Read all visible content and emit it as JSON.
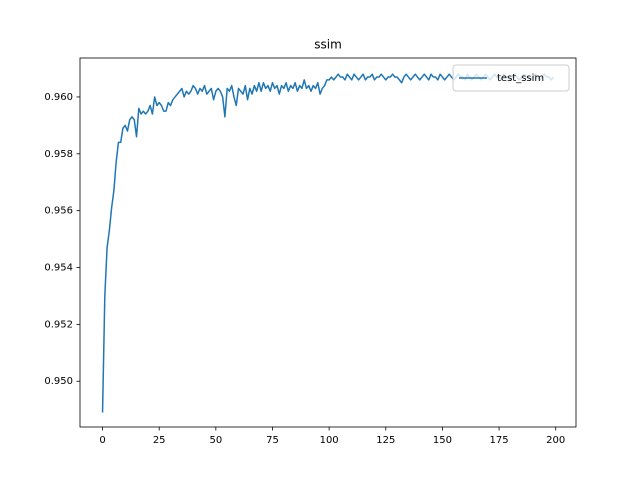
{
  "chart_data": {
    "type": "line",
    "title": "ssim",
    "x": [
      0,
      1,
      2,
      3,
      4,
      5,
      6,
      7,
      8,
      9,
      10,
      11,
      12,
      13,
      14,
      15,
      16,
      17,
      18,
      19,
      20,
      21,
      22,
      23,
      24,
      25,
      26,
      27,
      28,
      29,
      30,
      31,
      32,
      33,
      34,
      35,
      36,
      37,
      38,
      39,
      40,
      41,
      42,
      43,
      44,
      45,
      46,
      47,
      48,
      49,
      50,
      51,
      52,
      53,
      54,
      55,
      56,
      57,
      58,
      59,
      60,
      61,
      62,
      63,
      64,
      65,
      66,
      67,
      68,
      69,
      70,
      71,
      72,
      73,
      74,
      75,
      76,
      77,
      78,
      79,
      80,
      81,
      82,
      83,
      84,
      85,
      86,
      87,
      88,
      89,
      90,
      91,
      92,
      93,
      94,
      95,
      96,
      97,
      98,
      99,
      100,
      101,
      102,
      103,
      104,
      105,
      106,
      107,
      108,
      109,
      110,
      111,
      112,
      113,
      114,
      115,
      116,
      117,
      118,
      119,
      120,
      121,
      122,
      123,
      124,
      125,
      126,
      127,
      128,
      129,
      130,
      131,
      132,
      133,
      134,
      135,
      136,
      137,
      138,
      139,
      140,
      141,
      142,
      143,
      144,
      145,
      146,
      147,
      148,
      149,
      150,
      151,
      152,
      153,
      154,
      155,
      156,
      157,
      158,
      159,
      160,
      161,
      162,
      163,
      164,
      165,
      166,
      167,
      168,
      169,
      170,
      171,
      172,
      173,
      174,
      175,
      176,
      177,
      178,
      179,
      180,
      181,
      182,
      183,
      184,
      185,
      186,
      187,
      188,
      189,
      190,
      191,
      192,
      193,
      194,
      195,
      196,
      197,
      198,
      199
    ],
    "series": [
      {
        "name": "test_ssim",
        "color": "#1f77b4",
        "values": [
          0.9489,
          0.953,
          0.9547,
          0.9553,
          0.9561,
          0.9567,
          0.9577,
          0.9584,
          0.9584,
          0.9589,
          0.959,
          0.9588,
          0.9592,
          0.9593,
          0.9592,
          0.9586,
          0.9596,
          0.9594,
          0.9595,
          0.9594,
          0.9595,
          0.9597,
          0.9594,
          0.96,
          0.9597,
          0.9598,
          0.9597,
          0.9595,
          0.9595,
          0.9598,
          0.9597,
          0.9599,
          0.96,
          0.9601,
          0.9602,
          0.9603,
          0.96,
          0.9602,
          0.9601,
          0.9602,
          0.9604,
          0.9603,
          0.9601,
          0.9603,
          0.9602,
          0.9604,
          0.9601,
          0.9602,
          0.9603,
          0.9599,
          0.9602,
          0.9603,
          0.9602,
          0.96,
          0.9593,
          0.9603,
          0.9602,
          0.9604,
          0.96,
          0.9597,
          0.9603,
          0.9602,
          0.9601,
          0.9604,
          0.9599,
          0.9603,
          0.9601,
          0.9604,
          0.9602,
          0.9605,
          0.9602,
          0.9605,
          0.9603,
          0.9604,
          0.9602,
          0.9605,
          0.9603,
          0.9604,
          0.9601,
          0.9604,
          0.9603,
          0.9605,
          0.9602,
          0.9604,
          0.9603,
          0.9605,
          0.9602,
          0.9604,
          0.9603,
          0.9606,
          0.9603,
          0.9604,
          0.9602,
          0.9604,
          0.9603,
          0.9605,
          0.9601,
          0.9603,
          0.9604,
          0.9606,
          0.9606,
          0.9607,
          0.9606,
          0.9607,
          0.9608,
          0.9607,
          0.9607,
          0.9606,
          0.9608,
          0.9607,
          0.9606,
          0.9608,
          0.9607,
          0.9606,
          0.9607,
          0.9608,
          0.9606,
          0.9607,
          0.9607,
          0.9608,
          0.9606,
          0.9607,
          0.9607,
          0.9608,
          0.9607,
          0.9606,
          0.9607,
          0.9607,
          0.9608,
          0.9607,
          0.9607,
          0.9606,
          0.9605,
          0.9607,
          0.9608,
          0.9607,
          0.9606,
          0.9607,
          0.9608,
          0.9607,
          0.9606,
          0.9607,
          0.9608,
          0.9607,
          0.9606,
          0.9608,
          0.9607,
          0.9607,
          0.9606,
          0.9608,
          0.9607,
          0.9606,
          0.9607,
          0.9608,
          0.9607,
          0.9606,
          0.9607,
          0.9608,
          0.9607,
          0.9607,
          0.9606,
          0.9608,
          0.9607,
          0.9606,
          0.9607,
          0.9608,
          0.9607,
          0.9606,
          0.9607,
          0.9608,
          0.9607,
          0.9606,
          0.9607,
          0.9608,
          0.9607,
          0.9607,
          0.9606,
          0.9608,
          0.9607,
          0.9607,
          0.9606,
          0.9607,
          0.9608,
          0.9607,
          0.9606,
          0.9607,
          0.9608,
          0.9607,
          0.9607,
          0.9606,
          0.9607,
          0.9608,
          0.9607,
          0.9606,
          0.9607,
          0.9608,
          0.9607,
          0.9607,
          0.9606,
          0.9607
        ]
      }
    ],
    "xlim": [
      -9.95,
      208.95
    ],
    "xticks": [
      0,
      25,
      50,
      75,
      100,
      125,
      150,
      175,
      200
    ],
    "ylim": [
      0.94839,
      0.96137
    ],
    "yticks": [
      {
        "value": 0.95,
        "label": "0.950"
      },
      {
        "value": 0.952,
        "label": "0.952"
      },
      {
        "value": 0.954,
        "label": "0.954"
      },
      {
        "value": 0.956,
        "label": "0.956"
      },
      {
        "value": 0.958,
        "label": "0.958"
      },
      {
        "value": 0.96,
        "label": "0.960"
      }
    ],
    "legend": "upper right",
    "grid": false
  }
}
